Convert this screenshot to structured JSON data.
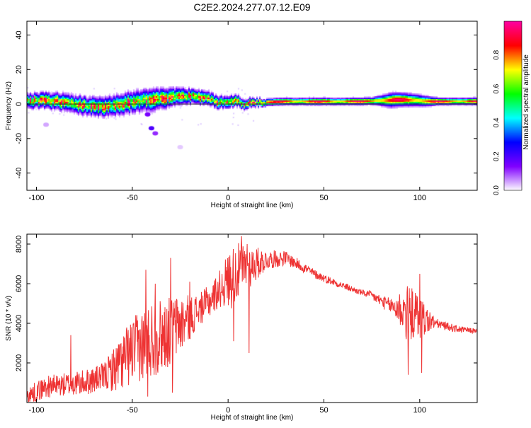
{
  "title": "C2E2.2024.277.07.12.E09",
  "chart_data": [
    {
      "type": "heatmap",
      "xlabel": "Height of straight line (km)",
      "ylabel": "Frequency (Hz)",
      "xlim": [
        -105,
        130
      ],
      "ylim": [
        -50,
        48
      ],
      "x_ticks": [
        -100,
        -50,
        0,
        50,
        100
      ],
      "y_ticks": [
        -40,
        -20,
        0,
        20,
        40
      ],
      "colorbar": {
        "label": "Normalized spectral amplitude",
        "range": [
          0.0,
          1.0
        ],
        "ticks": [
          "0.0",
          "0.2",
          "0.4",
          "0.6",
          "0.8"
        ],
        "tick_values": [
          0.0,
          0.2,
          0.4,
          0.6,
          0.8
        ],
        "colormap": [
          "#ffffff",
          "#8000ff",
          "#0000ff",
          "#00ffff",
          "#00ff00",
          "#ffff00",
          "#ff0000",
          "#ff00a0"
        ]
      },
      "band_center": [
        [
          -105,
          2
        ],
        [
          -95,
          2
        ],
        [
          -85,
          1
        ],
        [
          -75,
          -1
        ],
        [
          -65,
          -2
        ],
        [
          -55,
          0
        ],
        [
          -45,
          2
        ],
        [
          -35,
          3
        ],
        [
          -25,
          5
        ],
        [
          -15,
          4
        ],
        [
          -10,
          3
        ],
        [
          -5,
          1
        ],
        [
          0,
          1
        ],
        [
          5,
          2
        ],
        [
          8,
          0
        ],
        [
          12,
          1
        ],
        [
          20,
          1
        ],
        [
          30,
          1.5
        ],
        [
          50,
          1.5
        ],
        [
          70,
          1.5
        ],
        [
          80,
          2
        ],
        [
          90,
          2.5
        ],
        [
          100,
          2
        ],
        [
          105,
          1.5
        ],
        [
          130,
          1.5
        ]
      ],
      "band_halfwidth": [
        [
          -105,
          3
        ],
        [
          -60,
          4
        ],
        [
          -40,
          4.5
        ],
        [
          -20,
          3
        ],
        [
          0,
          2.5
        ],
        [
          20,
          1.5
        ],
        [
          60,
          1.5
        ],
        [
          75,
          1.5
        ],
        [
          85,
          3
        ],
        [
          100,
          2.5
        ],
        [
          110,
          1.5
        ],
        [
          130,
          1.5
        ]
      ],
      "features": [
        {
          "x": -42,
          "y": -6,
          "amp": 0.15
        },
        {
          "x": -40,
          "y": -14,
          "amp": 0.2
        },
        {
          "x": -38,
          "y": -17,
          "amp": 0.12
        },
        {
          "x": -95,
          "y": -12,
          "amp": 0.05
        },
        {
          "x": -25,
          "y": -25,
          "amp": 0.03
        }
      ]
    },
    {
      "type": "line",
      "xlabel": "Height of straight line (km)",
      "ylabel": "SNR (10 * v/v)",
      "xlim": [
        -105,
        130
      ],
      "ylim": [
        0,
        8500
      ],
      "x_ticks": [
        -100,
        -50,
        0,
        50,
        100
      ],
      "y_ticks": [
        2000,
        4000,
        6000,
        8000
      ],
      "color": "#ee3333",
      "trend": [
        [
          -105,
          300
        ],
        [
          -95,
          800
        ],
        [
          -85,
          900
        ],
        [
          -75,
          1000
        ],
        [
          -65,
          1300
        ],
        [
          -58,
          1800
        ],
        [
          -50,
          2600
        ],
        [
          -40,
          3200
        ],
        [
          -30,
          3600
        ],
        [
          -20,
          4300
        ],
        [
          -10,
          5100
        ],
        [
          -2,
          6000
        ],
        [
          5,
          6600
        ],
        [
          12,
          6900
        ],
        [
          20,
          7200
        ],
        [
          30,
          7300
        ],
        [
          38,
          6900
        ],
        [
          45,
          6500
        ],
        [
          52,
          6200
        ],
        [
          60,
          5900
        ],
        [
          68,
          5600
        ],
        [
          75,
          5400
        ],
        [
          82,
          5000
        ],
        [
          90,
          4700
        ],
        [
          98,
          4400
        ],
        [
          105,
          4100
        ],
        [
          112,
          3900
        ],
        [
          120,
          3700
        ],
        [
          130,
          3600
        ]
      ],
      "noise": [
        [
          -105,
          500
        ],
        [
          -85,
          600
        ],
        [
          -65,
          700
        ],
        [
          -55,
          1500
        ],
        [
          -40,
          2000
        ],
        [
          -28,
          1700
        ],
        [
          -15,
          800
        ],
        [
          -5,
          900
        ],
        [
          2,
          1600
        ],
        [
          10,
          1200
        ],
        [
          20,
          500
        ],
        [
          35,
          300
        ],
        [
          50,
          200
        ],
        [
          70,
          150
        ],
        [
          85,
          400
        ],
        [
          93,
          1400
        ],
        [
          100,
          1200
        ],
        [
          108,
          250
        ],
        [
          130,
          120
        ]
      ],
      "spikes": [
        [
          -82,
          3400
        ],
        [
          -43,
          6700
        ],
        [
          -42,
          300
        ],
        [
          -38,
          6000
        ],
        [
          -30,
          7300
        ],
        [
          -29,
          500
        ],
        [
          -20,
          6100
        ],
        [
          7,
          8400
        ],
        [
          10,
          8000
        ],
        [
          11,
          2500
        ],
        [
          3,
          3100
        ],
        [
          93,
          3200
        ],
        [
          94,
          1400
        ],
        [
          100,
          6500
        ],
        [
          101,
          1500
        ]
      ]
    }
  ]
}
